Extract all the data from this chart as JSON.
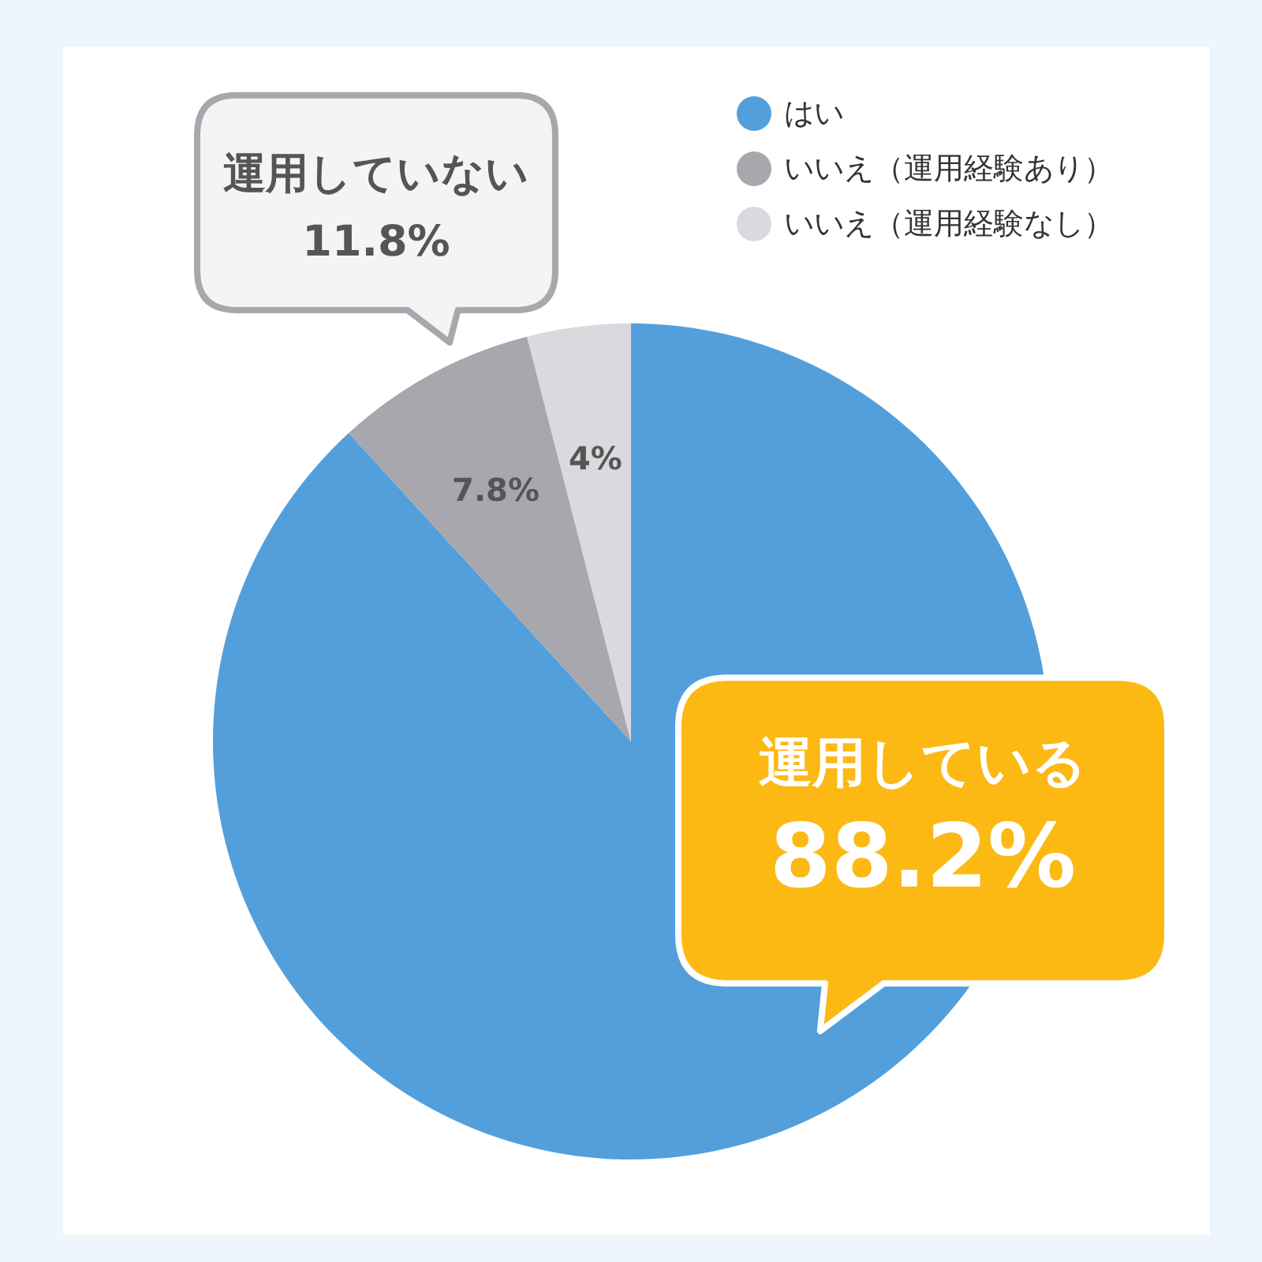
{
  "chart_data": {
    "type": "pie",
    "categories": [
      "はい",
      "いいえ（運用経験あり）",
      "いいえ（運用経験なし）"
    ],
    "values": [
      88.2,
      7.8,
      4
    ],
    "colors": [
      "#539fdc",
      "#a8a7ae",
      "#d9d9de"
    ],
    "value_labels": [
      null,
      "7.8%",
      "4%"
    ],
    "legend": "top right",
    "annotations": [
      "運用していない\n11.8%",
      "運用している\n88.2%"
    ]
  }
}
